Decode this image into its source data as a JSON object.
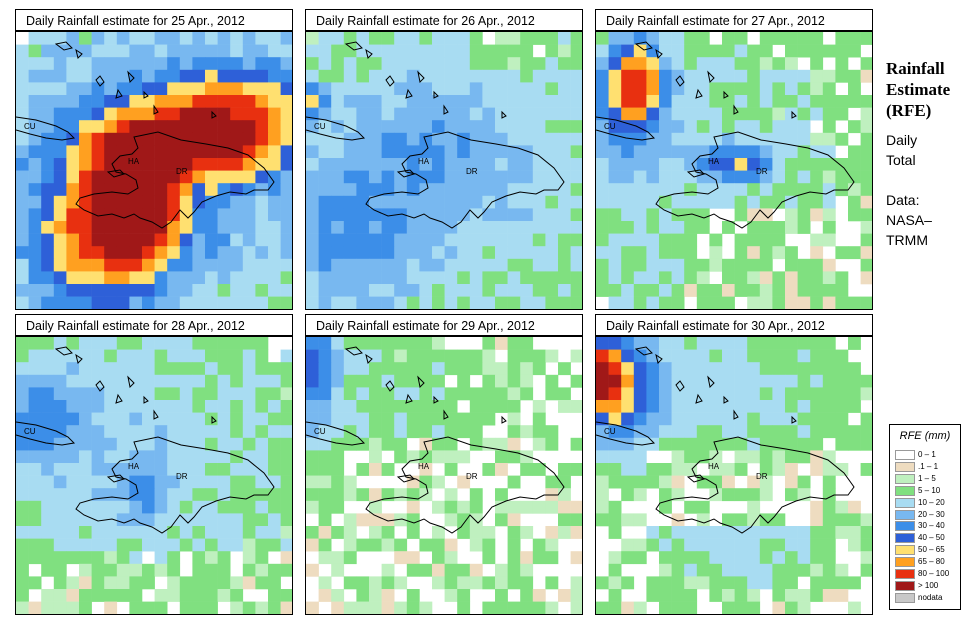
{
  "side_panel": {
    "title_line1": "Rainfall",
    "title_line2": "Estimate",
    "title_line3": "(RFE)",
    "period_line1": "Daily",
    "period_line2": "Total",
    "source_line1": "Data:",
    "source_line2": "NASA–",
    "source_line3": "TRMM"
  },
  "map_labels": {
    "cuba": "CU",
    "haiti": "HA",
    "dominican_republic": "DR"
  },
  "panels": [
    {
      "title": "Daily Rainfall estimate for  25 Apr., 2012"
    },
    {
      "title": "Daily Rainfall estimate for  26 Apr., 2012"
    },
    {
      "title": "Daily Rainfall estimate for  27 Apr., 2012"
    },
    {
      "title": "Daily Rainfall estimate for  28 Apr., 2012"
    },
    {
      "title": "Daily Rainfall estimate for  29 Apr., 2012"
    },
    {
      "title": "Daily Rainfall estimate for  30 Apr., 2012"
    }
  ],
  "legend": {
    "title": "RFE (mm)",
    "items": [
      {
        "label": "0 – 1",
        "color": "#ffffff"
      },
      {
        "label": ".1 – 1",
        "color": "#eedcc0"
      },
      {
        "label": "1 – 5",
        "color": "#bff0bf"
      },
      {
        "label": "5 – 10",
        "color": "#80e080"
      },
      {
        "label": "10 – 20",
        "color": "#a8dcf2"
      },
      {
        "label": "20 – 30",
        "color": "#78b8f0"
      },
      {
        "label": "30 – 40",
        "color": "#3c8ee8"
      },
      {
        "label": "40 – 50",
        "color": "#2e60d8"
      },
      {
        "label": "50 – 65",
        "color": "#ffe070"
      },
      {
        "label": "65 – 80",
        "color": "#ffa020"
      },
      {
        "label": "80 – 100",
        "color": "#e83010"
      },
      {
        "label": "> 100",
        "color": "#a01818"
      },
      {
        "label": "nodata",
        "color": "#c8c8c8"
      }
    ]
  }
}
